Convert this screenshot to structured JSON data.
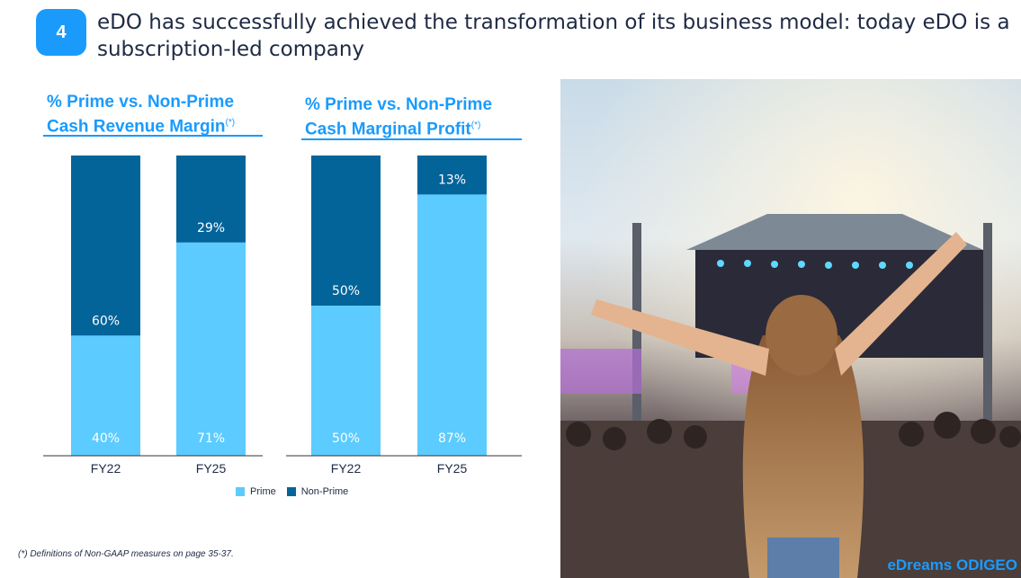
{
  "header": {
    "badge": "4",
    "headline_line1": "eDO has successfully achieved the transformation of its business model: today eDO is a",
    "headline_line2": "subscription-led company"
  },
  "chart_data": [
    {
      "type": "bar",
      "stacked": true,
      "percent": true,
      "title_line1": "% Prime vs. Non-Prime",
      "title_line2": "Cash Revenue Margin",
      "title_marker": "(*)",
      "categories": [
        "FY22",
        "FY25"
      ],
      "series": [
        {
          "name": "Prime",
          "values": [
            40,
            71
          ],
          "labels": [
            "40%",
            "71%"
          ]
        },
        {
          "name": "Non-Prime",
          "values": [
            60,
            29
          ],
          "labels": [
            "60%",
            "29%"
          ]
        }
      ],
      "ylim": [
        0,
        100
      ]
    },
    {
      "type": "bar",
      "stacked": true,
      "percent": true,
      "title_line1": "% Prime vs. Non-Prime",
      "title_line2": "Cash Marginal Profit",
      "title_marker": "(*)",
      "categories": [
        "FY22",
        "FY25"
      ],
      "series": [
        {
          "name": "Prime",
          "values": [
            50,
            87
          ],
          "labels": [
            "50%",
            "87%"
          ]
        },
        {
          "name": "Non-Prime",
          "values": [
            50,
            13
          ],
          "labels": [
            "50%",
            "13%"
          ]
        }
      ],
      "ylim": [
        0,
        100
      ]
    }
  ],
  "legend": {
    "placement": "bottom",
    "items": [
      {
        "label": "Prime",
        "color": "#5ccbff"
      },
      {
        "label": "Non-Prime",
        "color": "#03649a"
      }
    ]
  },
  "colors": {
    "prime": "#5ccbff",
    "non_prime": "#03649a",
    "accent": "#1a9bfc"
  },
  "footnote": "(*) Definitions of Non-GAAP measures on page 35-37.",
  "photo": {
    "icon": "festival-crowd-photo",
    "brand": "eDreams ODIGEO"
  }
}
